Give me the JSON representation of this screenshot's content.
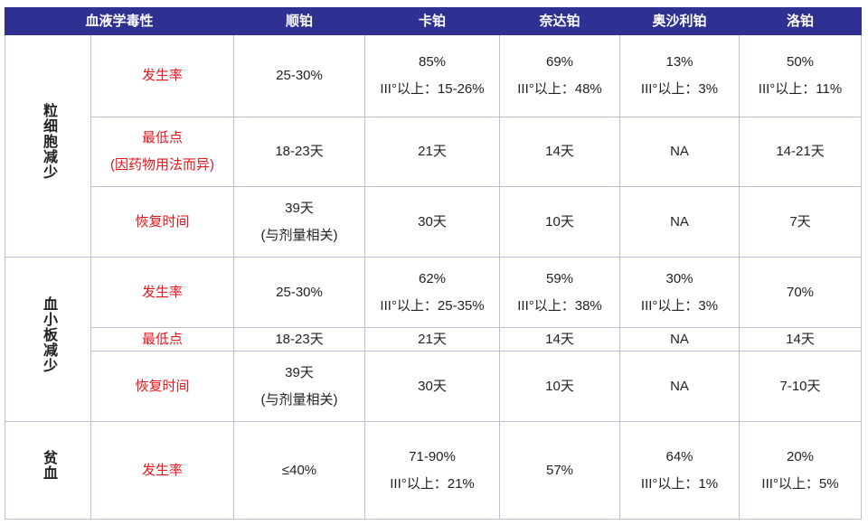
{
  "header": {
    "title": "血液学毒性",
    "columns": [
      "顺铂",
      "卡铂",
      "奈达铂",
      "奥沙利铂",
      "洛铂"
    ]
  },
  "groups": [
    {
      "label": "粒细胞减少",
      "rows": [
        {
          "label": [
            "发生率"
          ],
          "cells": [
            [
              "25-30%"
            ],
            [
              "85%",
              "III°以上：15-26%"
            ],
            [
              "69%",
              "III°以上：48%"
            ],
            [
              "13%",
              "III°以上：3%"
            ],
            [
              "50%",
              "III°以上：11%"
            ]
          ]
        },
        {
          "label": [
            "最低点",
            "(因药物用法而异)"
          ],
          "cells": [
            [
              "18-23天"
            ],
            [
              "21天"
            ],
            [
              "14天"
            ],
            [
              "NA"
            ],
            [
              "14-21天"
            ]
          ]
        },
        {
          "label": [
            "恢复时间"
          ],
          "cells": [
            [
              "39天",
              "(与剂量相关)"
            ],
            [
              "30天"
            ],
            [
              "10天"
            ],
            [
              "NA"
            ],
            [
              "7天"
            ]
          ]
        }
      ]
    },
    {
      "label": "血小板减少",
      "rows": [
        {
          "label": [
            "发生率"
          ],
          "cells": [
            [
              "25-30%"
            ],
            [
              "62%",
              "III°以上：25-35%"
            ],
            [
              "59%",
              "III°以上：38%"
            ],
            [
              "30%",
              "III°以上：3%"
            ],
            [
              "70%"
            ]
          ]
        },
        {
          "label": [
            "最低点"
          ],
          "cells": [
            [
              "18-23天"
            ],
            [
              "21天"
            ],
            [
              "14天"
            ],
            [
              "NA"
            ],
            [
              "14天"
            ]
          ]
        },
        {
          "label": [
            "恢复时间"
          ],
          "cells": [
            [
              "39天",
              "(与剂量相关)"
            ],
            [
              "30天"
            ],
            [
              "10天"
            ],
            [
              "NA"
            ],
            [
              "7-10天"
            ]
          ]
        }
      ]
    },
    {
      "label": "贫血",
      "rows": [
        {
          "label": [
            "发生率"
          ],
          "cells": [
            [
              "≤40%"
            ],
            [
              "71-90%",
              "III°以上：21%"
            ],
            [
              "57%"
            ],
            [
              "64%",
              "III°以上：1%"
            ],
            [
              "20%",
              "III°以上：5%"
            ]
          ]
        }
      ]
    }
  ]
}
